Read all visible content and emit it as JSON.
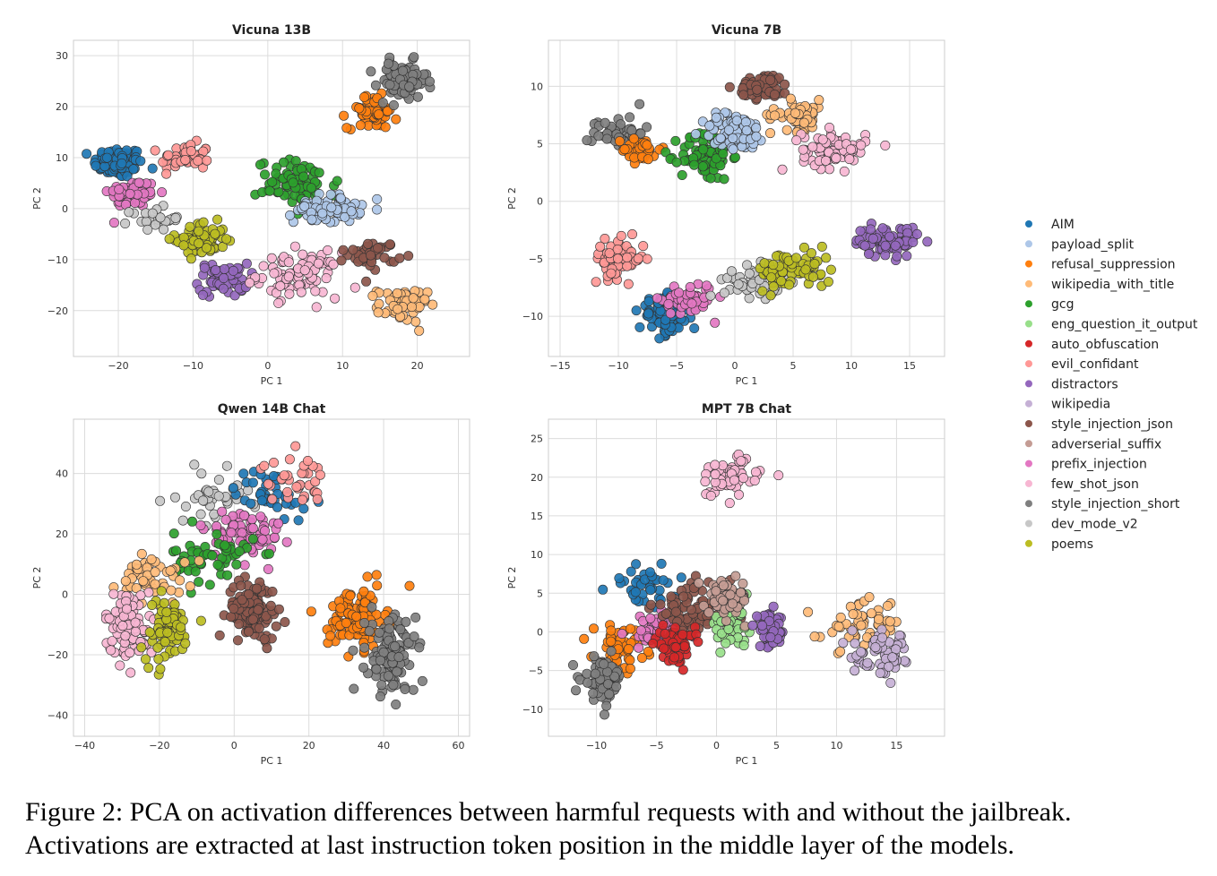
{
  "figure": {
    "legend_title": "",
    "legend": [
      {
        "name": "AIM",
        "color": "#1f77b4"
      },
      {
        "name": "payload_split",
        "color": "#aec7e8"
      },
      {
        "name": "refusal_suppression",
        "color": "#ff7f0e"
      },
      {
        "name": "wikipedia_with_title",
        "color": "#ffbb78"
      },
      {
        "name": "gcg",
        "color": "#2ca02c"
      },
      {
        "name": "eng_question_it_output",
        "color": "#98df8a"
      },
      {
        "name": "auto_obfuscation",
        "color": "#d62728"
      },
      {
        "name": "evil_confidant",
        "color": "#ff9896"
      },
      {
        "name": "distractors",
        "color": "#9467bd"
      },
      {
        "name": "wikipedia",
        "color": "#c5b0d5"
      },
      {
        "name": "style_injection_json",
        "color": "#8c564b"
      },
      {
        "name": "adverserial_suffix",
        "color": "#c49c94"
      },
      {
        "name": "prefix_injection",
        "color": "#e377c2"
      },
      {
        "name": "few_shot_json",
        "color": "#f7b6d2"
      },
      {
        "name": "style_injection_short",
        "color": "#7f7f7f"
      },
      {
        "name": "dev_mode_v2",
        "color": "#c7c7c7"
      },
      {
        "name": "poems",
        "color": "#bcbd22"
      }
    ]
  },
  "chart_data": [
    {
      "type": "scatter",
      "title": "Vicuna 13B",
      "xlabel": "PC 1",
      "ylabel": "PC 2",
      "xlim": [
        -26,
        27
      ],
      "ylim": [
        -29,
        33
      ],
      "xticks": [
        -20,
        -10,
        0,
        10,
        20
      ],
      "yticks": [
        -20,
        -10,
        0,
        10,
        20,
        30
      ],
      "xticklabels": [
        "−20",
        "−10",
        "0",
        "10",
        "20"
      ],
      "yticklabels": [
        "−20",
        "−10",
        "0",
        "10",
        "20",
        "30"
      ],
      "grid": true,
      "clusters": [
        {
          "series": "AIM",
          "center": [
            -20,
            9
          ],
          "spread": [
            3,
            2.8
          ],
          "n": 100
        },
        {
          "series": "prefix_injection",
          "center": [
            -18,
            3
          ],
          "spread": [
            3,
            2.5
          ],
          "n": 80
        },
        {
          "series": "evil_confidant",
          "center": [
            -11,
            10
          ],
          "spread": [
            3,
            2.5
          ],
          "n": 45
        },
        {
          "series": "dev_mode_v2",
          "center": [
            -15,
            -2
          ],
          "spread": [
            3,
            2
          ],
          "n": 25
        },
        {
          "series": "poems",
          "center": [
            -9,
            -6
          ],
          "spread": [
            3,
            3
          ],
          "n": 70
        },
        {
          "series": "distractors",
          "center": [
            -6,
            -14
          ],
          "spread": [
            3,
            3
          ],
          "n": 55
        },
        {
          "series": "few_shot_json",
          "center": [
            4,
            -13
          ],
          "spread": [
            5,
            4
          ],
          "n": 85
        },
        {
          "series": "gcg",
          "center": [
            4,
            5
          ],
          "spread": [
            5,
            4
          ],
          "n": 75
        },
        {
          "series": "payload_split",
          "center": [
            8,
            0
          ],
          "spread": [
            4,
            2.5
          ],
          "n": 70
        },
        {
          "series": "style_injection_json",
          "center": [
            14,
            -9
          ],
          "spread": [
            3,
            2.5
          ],
          "n": 40
        },
        {
          "series": "wikipedia_with_title",
          "center": [
            18,
            -19
          ],
          "spread": [
            3,
            3
          ],
          "n": 60
        },
        {
          "series": "refusal_suppression",
          "center": [
            14,
            19
          ],
          "spread": [
            3,
            3
          ],
          "n": 60
        },
        {
          "series": "style_injection_short",
          "center": [
            18,
            25
          ],
          "spread": [
            3,
            3.5
          ],
          "n": 80
        }
      ]
    },
    {
      "type": "scatter",
      "title": "Vicuna 7B",
      "xlabel": "PC 1",
      "ylabel": "PC 2",
      "xlim": [
        -16,
        18
      ],
      "ylim": [
        -13.5,
        14
      ],
      "xticks": [
        -15,
        -10,
        -5,
        0,
        5,
        10,
        15
      ],
      "yticks": [
        -10,
        -5,
        0,
        5,
        10
      ],
      "xticklabels": [
        "−15",
        "−10",
        "−5",
        "0",
        "5",
        "10",
        "15"
      ],
      "yticklabels": [
        "−10",
        "−5",
        "0",
        "5",
        "10"
      ],
      "grid": true,
      "clusters": [
        {
          "series": "style_injection_short",
          "center": [
            -10,
            6
          ],
          "spread": [
            2,
            1.3
          ],
          "n": 50
        },
        {
          "series": "refusal_suppression",
          "center": [
            -8,
            4.5
          ],
          "spread": [
            1.5,
            1
          ],
          "n": 35
        },
        {
          "series": "gcg",
          "center": [
            -2.5,
            4
          ],
          "spread": [
            2,
            2
          ],
          "n": 80
        },
        {
          "series": "payload_split",
          "center": [
            0,
            6
          ],
          "spread": [
            2.5,
            1.5
          ],
          "n": 90
        },
        {
          "series": "style_injection_json",
          "center": [
            2.5,
            10
          ],
          "spread": [
            2,
            1
          ],
          "n": 60
        },
        {
          "series": "wikipedia_with_title",
          "center": [
            5.5,
            7.5
          ],
          "spread": [
            2.2,
            1.2
          ],
          "n": 55
        },
        {
          "series": "few_shot_json",
          "center": [
            8.5,
            4.5
          ],
          "spread": [
            2.5,
            1.5
          ],
          "n": 70
        },
        {
          "series": "evil_confidant",
          "center": [
            -10,
            -5
          ],
          "spread": [
            2,
            1.5
          ],
          "n": 60
        },
        {
          "series": "AIM",
          "center": [
            -6,
            -10
          ],
          "spread": [
            2,
            1.5
          ],
          "n": 80
        },
        {
          "series": "prefix_injection",
          "center": [
            -4,
            -8.5
          ],
          "spread": [
            2,
            1.3
          ],
          "n": 60
        },
        {
          "series": "dev_mode_v2",
          "center": [
            1.5,
            -7
          ],
          "spread": [
            2.2,
            1.2
          ],
          "n": 50
        },
        {
          "series": "poems",
          "center": [
            5,
            -6
          ],
          "spread": [
            3,
            1.5
          ],
          "n": 80
        },
        {
          "series": "distractors",
          "center": [
            13,
            -3.5
          ],
          "spread": [
            2.5,
            1.2
          ],
          "n": 70
        }
      ]
    },
    {
      "type": "scatter",
      "title": "Qwen 14B Chat",
      "xlabel": "PC 1",
      "ylabel": "PC 2",
      "xlim": [
        -43,
        63
      ],
      "ylim": [
        -47,
        58
      ],
      "xticks": [
        -40,
        -20,
        0,
        20,
        40,
        60
      ],
      "yticks": [
        -40,
        -20,
        0,
        20,
        40
      ],
      "xticklabels": [
        "−40",
        "−20",
        "0",
        "20",
        "40",
        "60"
      ],
      "yticklabels": [
        "−40",
        "−20",
        "0",
        "20",
        "40"
      ],
      "grid": true,
      "clusters": [
        {
          "series": "dev_mode_v2",
          "center": [
            -5,
            32
          ],
          "spread": [
            9,
            8
          ],
          "n": 40
        },
        {
          "series": "AIM",
          "center": [
            10,
            34
          ],
          "spread": [
            9,
            7
          ],
          "n": 45
        },
        {
          "series": "evil_confidant",
          "center": [
            16,
            38
          ],
          "spread": [
            8,
            7
          ],
          "n": 35
        },
        {
          "series": "prefix_injection",
          "center": [
            2,
            20
          ],
          "spread": [
            10,
            8
          ],
          "n": 70
        },
        {
          "series": "gcg",
          "center": [
            -5,
            12
          ],
          "spread": [
            10,
            8
          ],
          "n": 55
        },
        {
          "series": "wikipedia_with_title",
          "center": [
            -22,
            6
          ],
          "spread": [
            8,
            8
          ],
          "n": 50
        },
        {
          "series": "few_shot_json",
          "center": [
            -28,
            -10
          ],
          "spread": [
            6,
            10
          ],
          "n": 90
        },
        {
          "series": "poems",
          "center": [
            -18,
            -12
          ],
          "spread": [
            6,
            10
          ],
          "n": 70
        },
        {
          "series": "style_injection_json",
          "center": [
            5,
            -5
          ],
          "spread": [
            6,
            9
          ],
          "n": 110
        },
        {
          "series": "refusal_suppression",
          "center": [
            33,
            -8
          ],
          "spread": [
            7,
            9
          ],
          "n": 110
        },
        {
          "series": "style_injection_short",
          "center": [
            42,
            -20
          ],
          "spread": [
            6,
            12
          ],
          "n": 120
        }
      ]
    },
    {
      "type": "scatter",
      "title": "MPT 7B Chat",
      "xlabel": "PC 1",
      "ylabel": "PC 2",
      "xlim": [
        -14,
        19
      ],
      "ylim": [
        -13.5,
        27.5
      ],
      "xticks": [
        -10,
        -5,
        0,
        5,
        10,
        15
      ],
      "yticks": [
        -10,
        -5,
        0,
        5,
        10,
        15,
        20,
        25
      ],
      "xticklabels": [
        "−10",
        "−5",
        "0",
        "5",
        "10",
        "15"
      ],
      "yticklabels": [
        "−10",
        "−5",
        "0",
        "5",
        "10",
        "15",
        "20",
        "25"
      ],
      "grid": true,
      "clusters": [
        {
          "series": "few_shot_json",
          "center": [
            1,
            20
          ],
          "spread": [
            2.5,
            2.5
          ],
          "n": 60
        },
        {
          "series": "AIM",
          "center": [
            -6,
            6
          ],
          "spread": [
            2.5,
            2.5
          ],
          "n": 40
        },
        {
          "series": "refusal_suppression",
          "center": [
            -8,
            -2
          ],
          "spread": [
            2,
            2.5
          ],
          "n": 50
        },
        {
          "series": "prefix_injection",
          "center": [
            -5,
            0
          ],
          "spread": [
            2.5,
            2
          ],
          "n": 60
        },
        {
          "series": "style_injection_json",
          "center": [
            -2,
            3
          ],
          "spread": [
            3,
            3
          ],
          "n": 70
        },
        {
          "series": "auto_obfuscation",
          "center": [
            -3.5,
            -1.5
          ],
          "spread": [
            1.5,
            2
          ],
          "n": 60
        },
        {
          "series": "eng_question_it_output",
          "center": [
            1,
            1
          ],
          "spread": [
            1.5,
            2.5
          ],
          "n": 50
        },
        {
          "series": "adverserial_suffix",
          "center": [
            1,
            4.5
          ],
          "spread": [
            1.5,
            2
          ],
          "n": 70
        },
        {
          "series": "distractors",
          "center": [
            4.5,
            0
          ],
          "spread": [
            1.2,
            2
          ],
          "n": 50
        },
        {
          "series": "wikipedia_with_title",
          "center": [
            12,
            1
          ],
          "spread": [
            3,
            3
          ],
          "n": 50
        },
        {
          "series": "wikipedia",
          "center": [
            14,
            -3
          ],
          "spread": [
            2.5,
            2.5
          ],
          "n": 60
        },
        {
          "series": "style_injection_short",
          "center": [
            -9.5,
            -6
          ],
          "spread": [
            1.5,
            2.5
          ],
          "n": 70
        }
      ]
    }
  ],
  "caption": {
    "line1": "Figure 2: PCA on activation differences between harmful requests with and without the jailbreak.",
    "line2": "Activations are extracted at last instruction token position in the middle layer of the models."
  }
}
